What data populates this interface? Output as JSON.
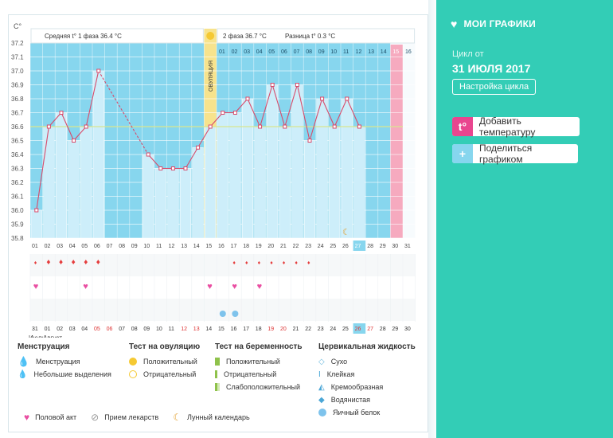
{
  "chart_data": {
    "type": "line",
    "title": "",
    "y_axis_label": "C°",
    "ylim": [
      35.8,
      37.2
    ],
    "y_ticks": [
      "37.2",
      "37.1",
      "37.0",
      "36.9",
      "36.8",
      "36.7",
      "36.6",
      "36.5",
      "36.4",
      "36.3",
      "36.2",
      "36.1",
      "36.0",
      "35.9",
      "35.8"
    ],
    "phase1_label": "Средняя t° 1 фаза 36.4 °C",
    "phase2_label": "2 фаза 36.7 °C",
    "diff_label": "Разница t° 0.3 °C",
    "ovulation_label": "ОВУЛЯЦИЯ",
    "cycle_days": [
      "01",
      "02",
      "03",
      "04",
      "05",
      "06",
      "07",
      "08",
      "09",
      "10",
      "11",
      "12",
      "13",
      "14",
      "15",
      "16",
      "17",
      "18",
      "19",
      "20",
      "21",
      "22",
      "23",
      "24",
      "25",
      "26",
      "27",
      "28",
      "29",
      "30",
      "31"
    ],
    "top_phase2_days": [
      "01",
      "02",
      "03",
      "04",
      "05",
      "06",
      "07",
      "08",
      "09",
      "10",
      "11",
      "12",
      "13",
      "14",
      "15",
      "16"
    ],
    "calendar_days": [
      "31",
      "01",
      "02",
      "03",
      "04",
      "05",
      "06",
      "07",
      "08",
      "09",
      "10",
      "11",
      "12",
      "13",
      "14",
      "15",
      "16",
      "17",
      "18",
      "19",
      "20",
      "21",
      "22",
      "23",
      "24",
      "25",
      "26",
      "27",
      "28",
      "29",
      "30"
    ],
    "month_labels": [
      "Июль",
      "Август"
    ],
    "series": [
      {
        "values": [
          36.0,
          36.6,
          36.7,
          36.5,
          36.6,
          37.0,
          null,
          null,
          null,
          36.4,
          36.3,
          36.3,
          36.3,
          36.45,
          36.6,
          36.7,
          36.7,
          36.8,
          36.6,
          36.9,
          36.6,
          36.9,
          36.5,
          36.8,
          36.6,
          36.8,
          36.6,
          null,
          null,
          null,
          null
        ]
      }
    ],
    "coverline": 36.6
  },
  "legend": {
    "menstruation": {
      "title": "Менструация",
      "items": [
        "Менструация",
        "Небольшие выделения"
      ]
    },
    "ovulation_test": {
      "title": "Тест на овуляцию",
      "items": [
        "Положительный",
        "Отрицательный"
      ]
    },
    "pregnancy_test": {
      "title": "Тест на беременность",
      "items": [
        "Положительный",
        "Отрицательный",
        "Слабоположительный"
      ]
    },
    "cervical": {
      "title": "Цервикальная жидкость",
      "items": [
        "Сухо",
        "Клейкая",
        "Кремообразная",
        "Водянистая",
        "Яичный белок"
      ]
    },
    "bottom": [
      "Половой акт",
      "Прием лекарств",
      "Лунный календарь"
    ]
  },
  "right_panel": {
    "title": "МОИ ГРАФИКИ",
    "cycle_from": "Цикл от",
    "date": "31 ИЮЛЯ 2017",
    "settings_button": "Настройка цикла",
    "add_temperature": "Добавить температуру",
    "share_chart": "Поделиться графиком",
    "colors": {
      "accent": "#33cdb6",
      "pink": "#e9458f",
      "blue": "#87d6ee"
    }
  }
}
